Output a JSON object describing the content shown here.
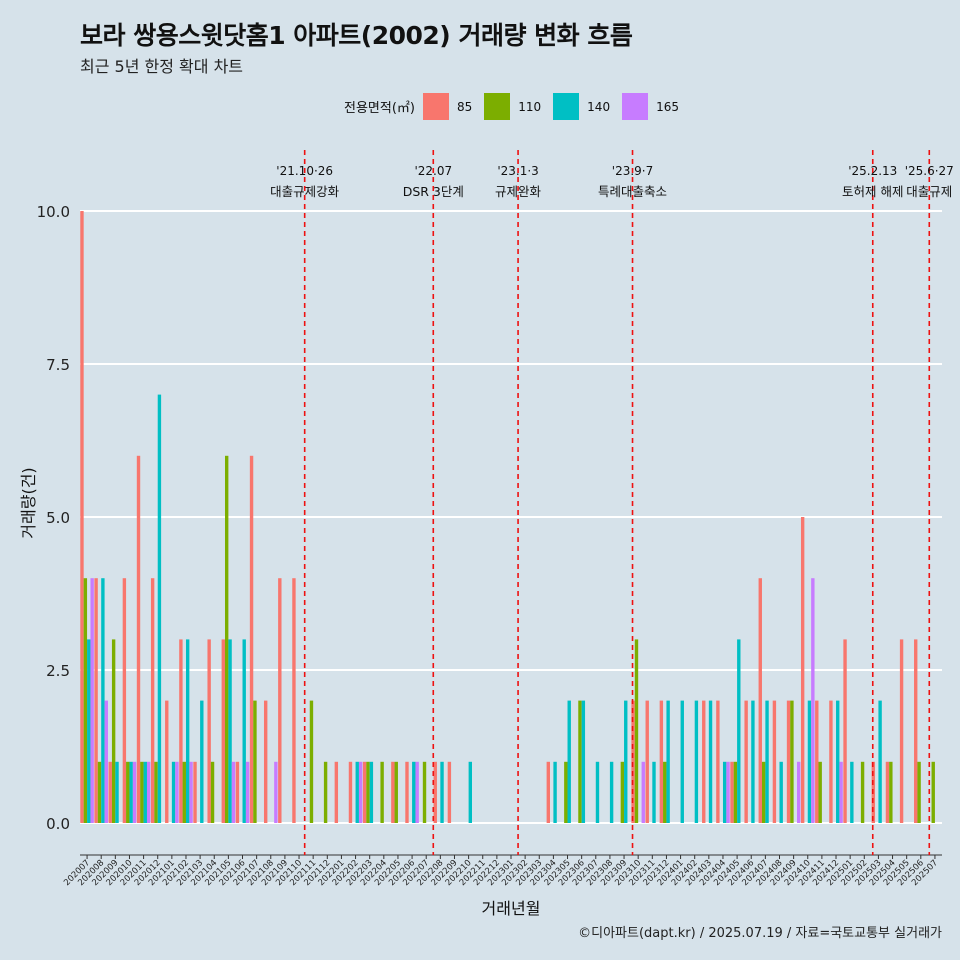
{
  "title": "보라 쌍용스윗닷홈1 아파트(2002) 거래량 변화 흐름",
  "subtitle": "최근 5년 한정 확대 차트",
  "caption": "©디아파트(dapt.kr) / 2025.07.19 / 자료=국토교통부 실거래가",
  "legend": {
    "title": "전용면적(㎡)",
    "items": [
      {
        "label": "85",
        "color": "#f8766d"
      },
      {
        "label": "110",
        "color": "#7cae00"
      },
      {
        "label": "140",
        "color": "#00bfc4"
      },
      {
        "label": "165",
        "color": "#c77cff"
      }
    ]
  },
  "chart_data": {
    "type": "bar",
    "title": "보라 쌍용스윗닷홈1 아파트(2002) 거래량 변화 흐름",
    "xlabel": "거래년월",
    "ylabel": "거래량(건)",
    "ylim": [
      0,
      10
    ],
    "yticks": [
      0.0,
      2.5,
      5.0,
      7.5,
      10.0
    ],
    "ytick_labels": [
      "0.0",
      "2.5",
      "5.0",
      "7.5",
      "10.0"
    ],
    "series_names": [
      "85",
      "110",
      "140",
      "165"
    ],
    "colors": [
      "#f8766d",
      "#7cae00",
      "#00bfc4",
      "#c77cff"
    ],
    "categories": [
      "202007",
      "202008",
      "202009",
      "202010",
      "202011",
      "202012",
      "202101",
      "202102",
      "202103",
      "202104",
      "202105",
      "202106",
      "202107",
      "202108",
      "202109",
      "202110",
      "202111",
      "202112",
      "202201",
      "202202",
      "202203",
      "202204",
      "202205",
      "202206",
      "202207",
      "202208",
      "202209",
      "202210",
      "202211",
      "202212",
      "202301",
      "202302",
      "202303",
      "202304",
      "202305",
      "202306",
      "202307",
      "202308",
      "202309",
      "202310",
      "202311",
      "202312",
      "202401",
      "202402",
      "202403",
      "202404",
      "202405",
      "202406",
      "202407",
      "202408",
      "202409",
      "202410",
      "202411",
      "202412",
      "202501",
      "202502",
      "202503",
      "202504",
      "202505",
      "202506",
      "202507"
    ],
    "values": [
      [
        10,
        4,
        3,
        4
      ],
      [
        4,
        1,
        4,
        2
      ],
      [
        1,
        3,
        1,
        0
      ],
      [
        4,
        1,
        1,
        1
      ],
      [
        6,
        1,
        1,
        1
      ],
      [
        4,
        1,
        7,
        0
      ],
      [
        2,
        0,
        1,
        1
      ],
      [
        3,
        1,
        3,
        1
      ],
      [
        1,
        0,
        2,
        0
      ],
      [
        3,
        1,
        0,
        0
      ],
      [
        3,
        6,
        3,
        1
      ],
      [
        1,
        0,
        3,
        1
      ],
      [
        6,
        2,
        0,
        0
      ],
      [
        2,
        0,
        0,
        1
      ],
      [
        4,
        0,
        0,
        0
      ],
      [
        4,
        0,
        0,
        0
      ],
      [
        0,
        2,
        0,
        0
      ],
      [
        0,
        1,
        0,
        0
      ],
      [
        1,
        0,
        0,
        0
      ],
      [
        1,
        0,
        1,
        1
      ],
      [
        1,
        1,
        1,
        0
      ],
      [
        0,
        1,
        0,
        0
      ],
      [
        1,
        1,
        0,
        0
      ],
      [
        1,
        0,
        1,
        1
      ],
      [
        0,
        1,
        0,
        0
      ],
      [
        1,
        0,
        1,
        0
      ],
      [
        1,
        0,
        0,
        0
      ],
      [
        0,
        0,
        1,
        0
      ],
      [
        0,
        0,
        0,
        0
      ],
      [
        0,
        0,
        0,
        0
      ],
      [
        0,
        0,
        0,
        0
      ],
      [
        0,
        0,
        0,
        0
      ],
      [
        0,
        0,
        0,
        0
      ],
      [
        1,
        0,
        1,
        0
      ],
      [
        0,
        1,
        2,
        0
      ],
      [
        0,
        2,
        2,
        0
      ],
      [
        0,
        0,
        1,
        0
      ],
      [
        0,
        0,
        1,
        0
      ],
      [
        0,
        1,
        2,
        0
      ],
      [
        2,
        3,
        0,
        1
      ],
      [
        2,
        0,
        1,
        0
      ],
      [
        2,
        1,
        2,
        0
      ],
      [
        0,
        0,
        2,
        0
      ],
      [
        0,
        0,
        2,
        0
      ],
      [
        2,
        0,
        2,
        0
      ],
      [
        2,
        0,
        1,
        1
      ],
      [
        1,
        1,
        3,
        0
      ],
      [
        2,
        0,
        2,
        0
      ],
      [
        4,
        1,
        2,
        0
      ],
      [
        2,
        0,
        1,
        0
      ],
      [
        2,
        2,
        0,
        1
      ],
      [
        5,
        0,
        2,
        4
      ],
      [
        2,
        1,
        0,
        0
      ],
      [
        2,
        0,
        2,
        1
      ],
      [
        3,
        0,
        1,
        0
      ],
      [
        0,
        1,
        0,
        0
      ],
      [
        1,
        0,
        2,
        0
      ],
      [
        1,
        1,
        0,
        0
      ],
      [
        3,
        0,
        0,
        0
      ],
      [
        3,
        1,
        0,
        0
      ],
      [
        0,
        1,
        0,
        0
      ]
    ],
    "annotations": [
      {
        "date_label": "'21.10·26",
        "text": "대출규제강화",
        "x_index": 15.4
      },
      {
        "date_label": "'22.07",
        "text": "DSR 3단계",
        "x_index": 24.5
      },
      {
        "date_label": "'23.1·3",
        "text": "규제완화",
        "x_index": 30.5
      },
      {
        "date_label": "'23.9·7",
        "text": "특례대출축소",
        "x_index": 38.6
      },
      {
        "date_label": "'25.2.13",
        "text": "토허제 해제",
        "x_index": 55.6
      },
      {
        "date_label": "'25.6·27",
        "text": "대출규제",
        "x_index": 59.6
      }
    ]
  }
}
